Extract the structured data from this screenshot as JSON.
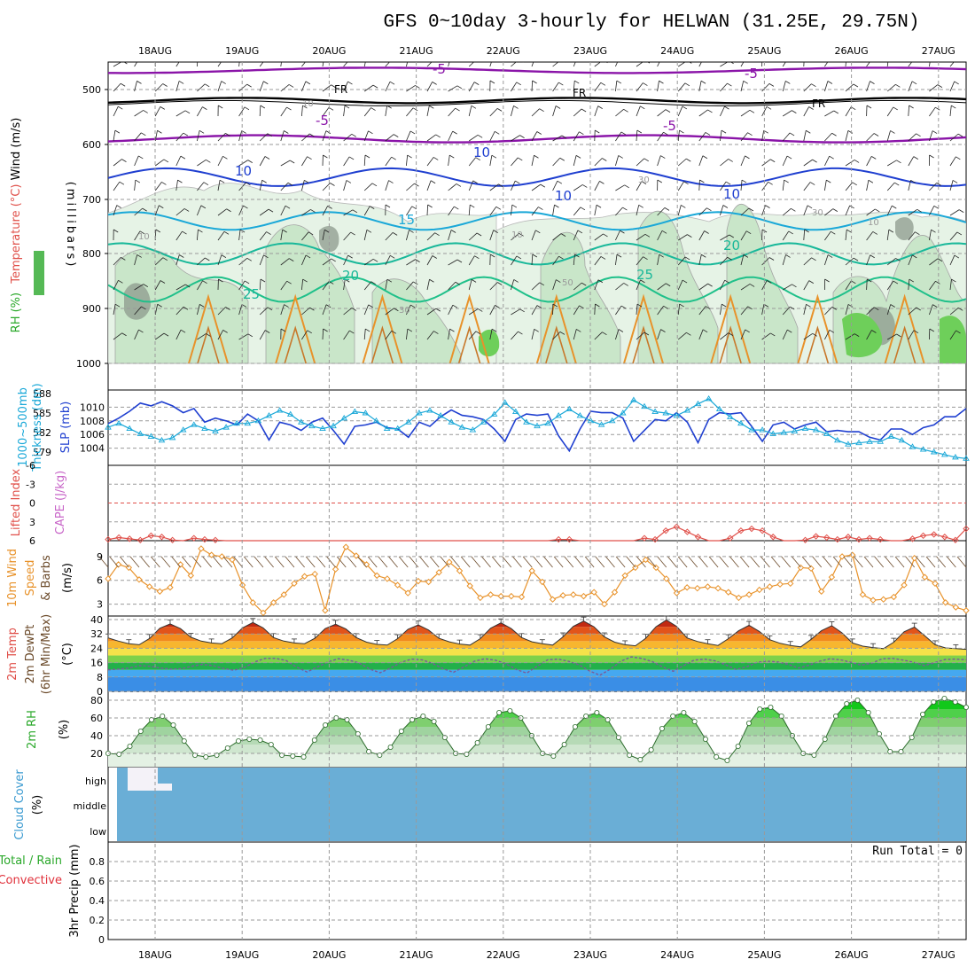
{
  "title": "GFS 0~10day 3-hourly for HELWAN (31.25E, 29.75N)",
  "date_labels": [
    "18AUG",
    "19AUG",
    "20AUG",
    "21AUG",
    "22AUG",
    "23AUG",
    "24AUG",
    "25AUG",
    "26AUG",
    "27AUG"
  ],
  "colors": {
    "purple": "#8a14a8",
    "blue": "#1f3fd0",
    "cyan": "#1aa8d8",
    "teal": "#19b89a",
    "green_light": "#e6f3e6",
    "green_mid": "#c9e6c9",
    "gray_dark": "#8c9a8c",
    "orange": "#e8922a",
    "cape_red": "#e0504a",
    "cloud_blue": "#6aaed6"
  },
  "chart_data": [
    {
      "type": "contour",
      "panel": "upper_air",
      "ylabel_parts": [
        "RH (%)",
        "Temperature (°C)",
        "Wind (m/s)",
        "(millibars)"
      ],
      "yticks": [
        "500",
        "600",
        "700",
        "800",
        "900",
        "1000"
      ],
      "ylim": [
        1000,
        450
      ],
      "contour_labels": {
        "minus5": "-5",
        "freezing": "FR",
        "ten": "10",
        "fifteen": "15",
        "twenty": "20",
        "twentyfive": "25",
        "rh10": "10",
        "rh30": "30",
        "rh50": "50",
        "rh70": "70",
        "thirty": "30"
      }
    },
    {
      "type": "line",
      "panel": "slp_thickness",
      "ylabel_left": [
        "1000~500mb",
        "Thickness (dm)"
      ],
      "ylabel_right": "SLP (mb)",
      "left_ticks": [
        "588",
        "585",
        "582",
        "579"
      ],
      "right_ticks": [
        "1010",
        "1008",
        "1006",
        "1004"
      ],
      "slp_range": [
        1002,
        1012
      ],
      "thickness_range": [
        577.5,
        588
      ],
      "series": [
        {
          "name": "SLP (mb)",
          "values": [
            1007.6,
            1008.4,
            1009.4,
            1010.6,
            1010.2,
            1010.8,
            1010.2,
            1009.2,
            1009.8,
            1007.8,
            1008.4,
            1008.0,
            1007.4,
            1009.0,
            1008.0,
            1005.2,
            1007.8,
            1007.4,
            1006.6,
            1007.8,
            1008.4,
            1006.6,
            1004.6,
            1007.2,
            1007.4,
            1007.8,
            1007.0,
            1006.8,
            1005.6,
            1007.8,
            1007.2,
            1008.6,
            1009.6,
            1008.8,
            1008.6,
            1008.2,
            1006.8,
            1005.0,
            1008.2,
            1009.0,
            1008.8,
            1009.0,
            1005.8,
            1003.6,
            1006.8,
            1009.4,
            1009.2,
            1009.2,
            1008.4,
            1005.0,
            1006.6,
            1008.2,
            1008.0,
            1009.2,
            1007.8,
            1004.8,
            1008.2,
            1009.2,
            1009.0,
            1009.2,
            1007.2,
            1005.0,
            1007.4,
            1007.8,
            1006.8,
            1007.4,
            1007.8,
            1006.4,
            1006.6,
            1006.4,
            1006.4,
            1005.6,
            1005.2,
            1006.8,
            1006.8,
            1006.0,
            1007.0,
            1007.4,
            1008.6,
            1008.6,
            1009.8
          ]
        },
        {
          "name": "1000~500mb Thickness (dm)",
          "values": [
            582.8,
            583.4,
            582.6,
            581.8,
            581.4,
            580.8,
            581.2,
            582.4,
            583.2,
            582.6,
            582.2,
            582.8,
            583.4,
            583.4,
            583.8,
            584.6,
            585.4,
            584.8,
            583.6,
            583.0,
            582.6,
            583.0,
            584.2,
            585.2,
            585.0,
            583.8,
            582.6,
            582.6,
            583.6,
            585.0,
            585.4,
            584.6,
            583.6,
            582.8,
            582.4,
            583.6,
            584.8,
            586.6,
            585.2,
            583.6,
            583.0,
            583.4,
            584.6,
            585.6,
            584.6,
            583.8,
            583.2,
            583.8,
            585.0,
            587.0,
            586.0,
            585.2,
            585.0,
            584.6,
            585.4,
            586.4,
            587.2,
            585.6,
            584.4,
            583.4,
            582.4,
            582.4,
            581.8,
            582.0,
            582.2,
            582.6,
            582.4,
            581.8,
            580.8,
            580.2,
            580.4,
            580.6,
            580.6,
            581.4,
            580.8,
            579.8,
            579.4,
            579.0,
            578.6,
            578.2,
            578.0
          ]
        }
      ]
    },
    {
      "type": "line",
      "panel": "cape_li",
      "ylabel_parts": [
        "Lifted Index",
        "CAPE (J/kg)"
      ],
      "yticks": [
        "-6",
        "-3",
        "0",
        "3",
        "6"
      ],
      "ylim": [
        -6,
        6
      ],
      "series": [
        {
          "name": "Lifted Index",
          "values": [
            5.8,
            5.5,
            5.7,
            5.9,
            5.2,
            5.4,
            5.9,
            6.0,
            5.6,
            5.8,
            5.9,
            6.0,
            6.0,
            6.0,
            6.0,
            6.0,
            6.0,
            6.0,
            6.0,
            6.0,
            6.0,
            6.0,
            6.0,
            6.0,
            6.0,
            6.0,
            6.0,
            6.0,
            6.0,
            6.0,
            6.0,
            6.0,
            6.0,
            6.0,
            6.0,
            6.0,
            6.0,
            6.0,
            6.0,
            6.0,
            6.0,
            6.0,
            5.8,
            5.8,
            6.0,
            6.0,
            6.0,
            6.0,
            6.0,
            6.0,
            5.6,
            5.8,
            4.4,
            3.8,
            4.6,
            5.4,
            6.0,
            6.0,
            5.6,
            4.4,
            4.1,
            4.4,
            5.4,
            6.0,
            6.0,
            5.9,
            5.3,
            5.5,
            5.8,
            5.4,
            5.8,
            5.6,
            5.8,
            6.0,
            6.0,
            5.7,
            5.2,
            5.0,
            5.4,
            5.9,
            4.1
          ]
        },
        {
          "name": "CAPE (J/kg)",
          "values": []
        }
      ]
    },
    {
      "type": "line",
      "panel": "wind10m",
      "ylabel_parts": [
        "10m Wind",
        "Speed",
        "& Barbs",
        "(m/s)"
      ],
      "yticks": [
        "3",
        "6",
        "9"
      ],
      "ylim": [
        1.5,
        11
      ],
      "series": [
        {
          "name": "10m Wind Speed (m/s)",
          "values": [
            6.2,
            8.0,
            7.6,
            6.1,
            5.2,
            4.6,
            5.1,
            8.0,
            6.6,
            10.0,
            9.2,
            9.0,
            8.6,
            5.4,
            3.2,
            1.9,
            3.2,
            4.2,
            5.6,
            6.5,
            6.8,
            2.2,
            7.4,
            10.2,
            9.1,
            8.0,
            6.6,
            6.2,
            5.4,
            4.4,
            5.9,
            5.8,
            7.0,
            8.3,
            7.2,
            5.3,
            3.8,
            4.2,
            4.0,
            4.0,
            3.9,
            7.2,
            5.8,
            3.6,
            4.1,
            4.2,
            4.0,
            4.5,
            3.0,
            4.5,
            6.6,
            7.6,
            8.6,
            7.6,
            6.2,
            4.4,
            5.1,
            5.0,
            5.2,
            5.0,
            4.5,
            3.8,
            4.2,
            4.8,
            5.2,
            5.5,
            5.6,
            7.6,
            7.5,
            4.6,
            6.4,
            9.0,
            9.2,
            4.2,
            3.5,
            3.6,
            3.9,
            5.4,
            8.8,
            6.4,
            5.6,
            3.2,
            2.6,
            2.2
          ]
        }
      ]
    },
    {
      "type": "area",
      "panel": "temp2m",
      "ylabel_parts": [
        "2m Temp",
        "2m DewPt",
        "(6hr Min/Max)",
        "(°C)"
      ],
      "yticks": [
        "40",
        "32",
        "24",
        "16",
        "8",
        "0"
      ],
      "ylim": [
        0,
        42
      ],
      "series": [
        {
          "name": "2m Temp (°C)",
          "values": [
            29.8,
            28.0,
            26.6,
            26.0,
            29.5,
            35.2,
            37.6,
            35.0,
            30.2,
            28.0,
            27.0,
            26.6,
            29.8,
            35.4,
            38.4,
            35.4,
            30.0,
            28.0,
            27.0,
            26.6,
            29.6,
            35.0,
            37.4,
            34.8,
            30.0,
            27.4,
            26.2,
            25.8,
            29.4,
            34.6,
            37.0,
            34.2,
            29.6,
            27.6,
            26.4,
            25.8,
            29.4,
            35.2,
            38.2,
            35.0,
            30.0,
            27.6,
            26.6,
            25.8,
            30.4,
            36.2,
            39.2,
            36.0,
            30.4,
            27.4,
            26.0,
            25.4,
            29.6,
            36.0,
            39.8,
            36.2,
            29.8,
            27.8,
            26.6,
            25.6,
            29.4,
            33.8,
            36.8,
            33.4,
            28.8,
            26.8,
            25.6,
            24.8,
            29.0,
            33.8,
            36.6,
            32.6,
            27.0,
            25.2,
            24.4,
            23.8,
            27.4,
            33.2,
            35.8,
            31.0,
            26.0,
            24.2,
            23.8,
            23.4
          ]
        },
        {
          "name": "2m DewPt (°C)",
          "values": [
            12.0,
            12.4,
            13.0,
            14.4,
            14.0,
            13.0,
            12.4,
            12.6,
            14.0,
            15.0,
            14.4,
            12.8,
            11.8,
            13.2,
            16.4,
            18.4,
            18.4,
            17.2,
            13.6,
            10.8,
            13.6,
            16.4,
            18.2,
            17.4,
            15.8,
            12.4,
            10.4,
            13.0,
            16.2,
            18.0,
            17.6,
            15.6,
            12.6,
            10.6,
            13.6,
            16.8,
            18.2,
            17.4,
            15.4,
            12.2,
            10.2,
            14.0,
            17.6,
            18.0,
            16.8,
            14.8,
            11.4,
            9.0,
            12.4,
            16.8,
            19.2,
            18.4,
            16.6,
            13.6,
            11.2,
            14.4,
            17.4,
            18.0,
            17.0,
            14.8,
            12.2,
            13.6,
            16.2,
            16.8,
            16.4,
            15.0,
            13.0,
            14.6,
            16.8,
            18.2,
            17.6,
            16.2,
            14.6,
            15.8,
            18.2,
            18.4,
            17.4,
            16.2,
            14.4,
            16.0,
            17.8,
            18.0,
            17.6
          ]
        }
      ]
    },
    {
      "type": "area",
      "panel": "rh2m",
      "ylabel_parts": [
        "2m RH",
        "(%)"
      ],
      "yticks": [
        "80",
        "60",
        "40",
        "20"
      ],
      "ylim": [
        5,
        90
      ],
      "series": [
        {
          "name": "2m RH (%)",
          "values": [
            20.0,
            19.0,
            28.0,
            45.0,
            58.0,
            62.0,
            52.0,
            34.0,
            18.0,
            16.0,
            18.0,
            26.0,
            34.0,
            36.0,
            35.0,
            30.0,
            18.0,
            17.0,
            16.0,
            35.0,
            52.0,
            60.0,
            58.0,
            42.0,
            22.0,
            18.0,
            27.0,
            45.0,
            58.0,
            62.0,
            56.0,
            38.0,
            20.0,
            19.0,
            32.0,
            50.0,
            66.0,
            68.0,
            60.0,
            40.0,
            20.0,
            17.0,
            30.0,
            50.0,
            62.0,
            66.0,
            58.0,
            38.0,
            18.0,
            13.0,
            24.0,
            48.0,
            62.0,
            66.0,
            56.0,
            36.0,
            16.0,
            12.0,
            28.0,
            54.0,
            70.0,
            72.0,
            62.0,
            40.0,
            20.0,
            18.0,
            36.0,
            62.0,
            76.0,
            80.0,
            66.0,
            42.0,
            22.0,
            22.0,
            38.0,
            64.0,
            78.0,
            82.0,
            78.0,
            72.0
          ]
        }
      ]
    },
    {
      "type": "heatmap",
      "panel": "cloud",
      "ylabel_parts": [
        "Cloud Cover",
        "(%)"
      ],
      "yticks": [
        "high",
        "middle",
        "low"
      ]
    },
    {
      "type": "bar",
      "panel": "precip",
      "ylabel_parts": [
        "Total / Rain",
        "Convective",
        "3hr Precip (mm)"
      ],
      "yticks": [
        "0",
        "0.2",
        "0.4",
        "0.6",
        "0.8"
      ],
      "ylim": [
        0,
        1
      ],
      "run_total": "Run Total = 0",
      "series": [
        {
          "name": "3hr Precip (mm)",
          "values": []
        }
      ]
    }
  ]
}
